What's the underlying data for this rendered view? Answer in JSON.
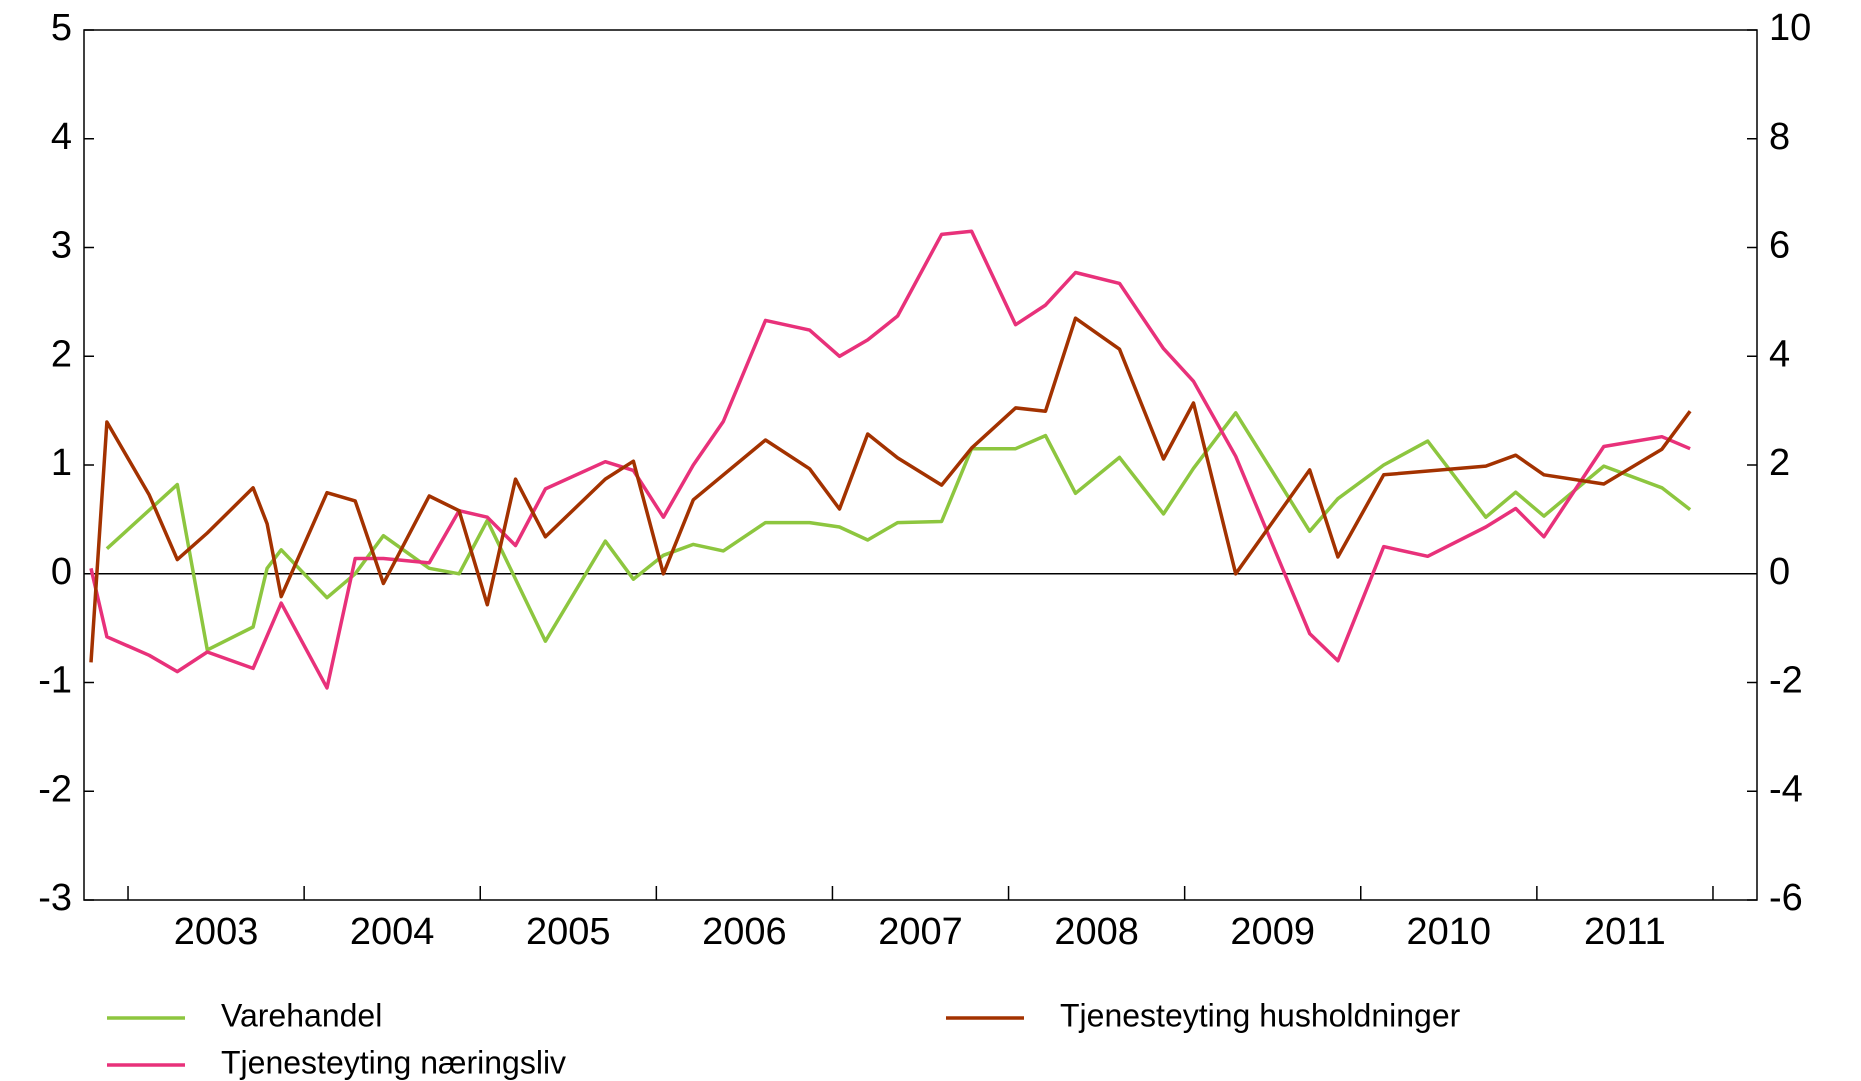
{
  "chart_data": {
    "type": "line",
    "categories": [
      "2003",
      "2004",
      "2005",
      "2006",
      "2007",
      "2008",
      "2009",
      "2010",
      "2011"
    ],
    "xlim": [
      2002.75,
      2012.25
    ],
    "xticks": [
      2003,
      2004,
      2005,
      2006,
      2007,
      2008,
      2009,
      2010,
      2011,
      2012
    ],
    "ylim": [
      -3,
      5
    ],
    "yticks": [
      -3,
      -2,
      -1,
      0,
      1,
      2,
      3,
      4,
      5
    ],
    "y2lim": [
      -6,
      10
    ],
    "y2ticks": [
      -6,
      -4,
      -2,
      0,
      2,
      4,
      6,
      8,
      10
    ],
    "zero_line": true,
    "legend": "bottom",
    "series": [
      {
        "name": "Varehandel",
        "color": "#8dc63f",
        "x": [
          2002.88,
          2003.28,
          2003.45,
          2003.71,
          2003.79,
          2003.87,
          2004.13,
          2004.29,
          2004.45,
          2004.71,
          2004.88,
          2005.04,
          2005.37,
          2005.71,
          2005.87,
          2006.04,
          2006.21,
          2006.38,
          2006.62,
          2006.87,
          2007.04,
          2007.2,
          2007.37,
          2007.62,
          2007.79,
          2008.04,
          2008.21,
          2008.38,
          2008.63,
          2008.88,
          2009.05,
          2009.29,
          2009.71,
          2009.87,
          2010.13,
          2010.38,
          2010.71,
          2010.88,
          2011.04,
          2011.38,
          2011.71,
          2011.87
        ],
        "values": [
          0.23,
          0.82,
          -0.7,
          -0.49,
          0.05,
          0.22,
          -0.22,
          0,
          0.35,
          0.05,
          0,
          0.49,
          -0.62,
          0.3,
          -0.05,
          0.17,
          0.27,
          0.21,
          0.47,
          0.47,
          0.43,
          0.31,
          0.47,
          0.48,
          1.15,
          1.15,
          1.27,
          0.74,
          1.07,
          0.55,
          0.97,
          1.48,
          0.39,
          0.69,
          1.0,
          1.22,
          0.52,
          0.75,
          0.53,
          0.99,
          0.79,
          0.59
        ]
      },
      {
        "name": "Tjenesteyting næringsliv",
        "color": "#e8317a",
        "x": [
          2002.79,
          2002.88,
          2003.12,
          2003.28,
          2003.45,
          2003.71,
          2003.87,
          2004.13,
          2004.29,
          2004.45,
          2004.71,
          2004.88,
          2005.04,
          2005.2,
          2005.37,
          2005.71,
          2005.87,
          2006.04,
          2006.21,
          2006.38,
          2006.62,
          2006.87,
          2007.04,
          2007.2,
          2007.37,
          2007.62,
          2007.79,
          2008.04,
          2008.21,
          2008.38,
          2008.63,
          2008.88,
          2009.05,
          2009.29,
          2009.71,
          2009.87,
          2010.13,
          2010.38,
          2010.71,
          2010.88,
          2011.04,
          2011.38,
          2011.71,
          2011.87
        ],
        "values": [
          0.05,
          -0.58,
          -0.75,
          -0.9,
          -0.72,
          -0.87,
          -0.27,
          -1.05,
          0.14,
          0.14,
          0.1,
          0.58,
          0.52,
          0.26,
          0.78,
          1.03,
          0.95,
          0.52,
          1.0,
          1.4,
          2.33,
          2.24,
          2.0,
          2.15,
          2.37,
          3.12,
          3.15,
          2.29,
          2.47,
          2.77,
          2.67,
          2.07,
          1.77,
          1.08,
          -0.55,
          -0.8,
          0.25,
          0.16,
          0.43,
          0.6,
          0.34,
          1.17,
          1.26,
          1.15
        ]
      },
      {
        "name": "Tjenesteyting husholdninger",
        "color": "#a33200",
        "axis": "y2",
        "x": [
          2002.79,
          2002.88,
          2003.12,
          2003.28,
          2003.45,
          2003.71,
          2003.79,
          2003.87,
          2004.13,
          2004.29,
          2004.45,
          2004.71,
          2004.88,
          2005.04,
          2005.2,
          2005.37,
          2005.71,
          2005.87,
          2006.04,
          2006.21,
          2006.62,
          2006.87,
          2007.04,
          2007.2,
          2007.37,
          2007.62,
          2007.79,
          2008.04,
          2008.21,
          2008.38,
          2008.63,
          2008.88,
          2009.05,
          2009.29,
          2009.71,
          2009.87,
          2010.13,
          2010.71,
          2010.88,
          2011.04,
          2011.38,
          2011.71,
          2011.87
        ],
        "values": [
          -1.63,
          2.79,
          1.45,
          0.26,
          0.75,
          1.58,
          0.92,
          -0.42,
          1.49,
          1.34,
          -0.18,
          1.43,
          1.16,
          -0.57,
          1.74,
          0.68,
          1.74,
          2.07,
          0,
          1.36,
          2.46,
          1.93,
          1.19,
          2.57,
          2.13,
          1.63,
          2.31,
          3.05,
          2.99,
          4.7,
          4.13,
          2.11,
          3.14,
          0,
          1.91,
          0.31,
          1.82,
          1.98,
          2.18,
          1.82,
          1.65,
          2.29,
          2.99
        ]
      }
    ]
  }
}
